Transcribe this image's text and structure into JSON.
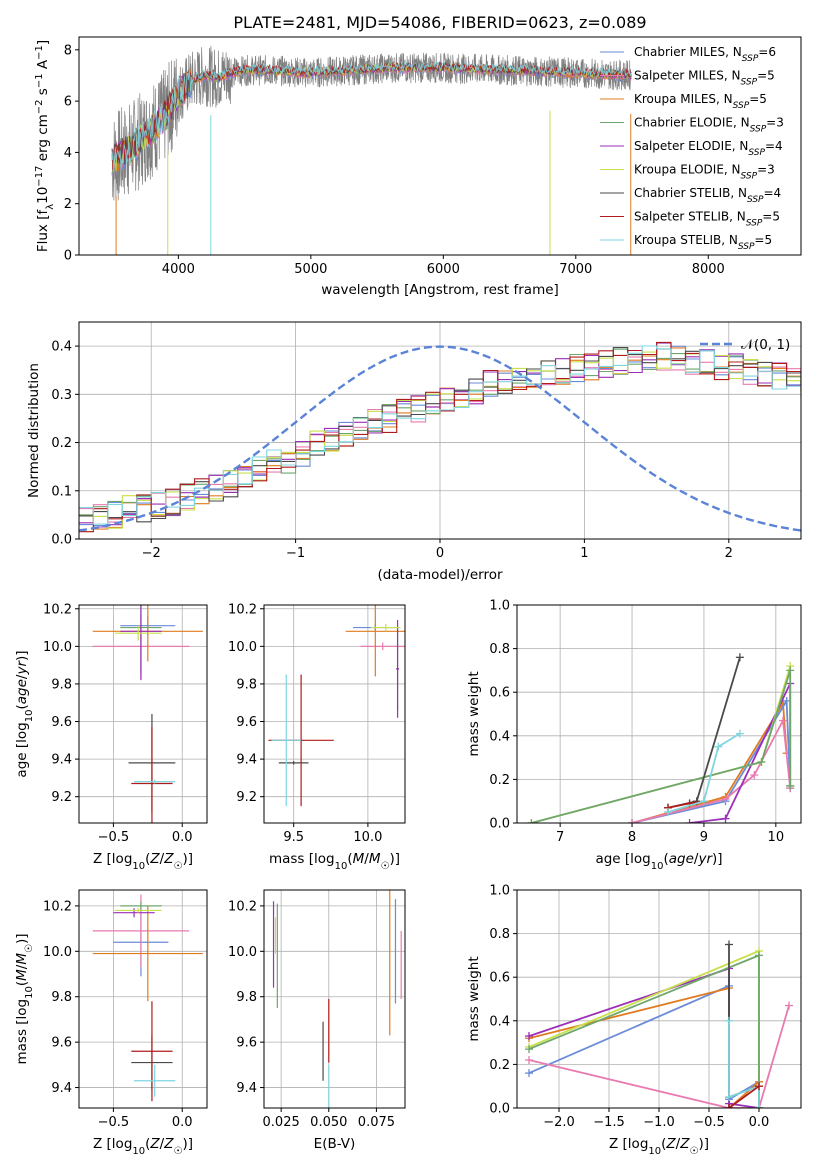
{
  "colors": {
    "chabrier_miles": "#6a8bd8",
    "salpeter_miles": "#e97ab0",
    "kroupa_miles": "#e07b20",
    "chabrier_elodie": "#6ea66e",
    "salpeter_elodie": "#9b2fb8",
    "kroupa_elodie": "#c8e04b",
    "chabrier_stelib": "#4a4a4a",
    "salpeter_stelib": "#b01c1c",
    "kroupa_stelib": "#7dd6e0",
    "grid": "#b0b0b0"
  },
  "chart_data": [
    {
      "id": "spectrum",
      "type": "line",
      "title": "PLATE=2481, MJD=54086, FIBERID=0623, z=0.089",
      "xlabel": "wavelength [Angstrom, rest frame]",
      "ylabel": "Flux [f_λ10^-17 erg cm^-2 s^-1 A^-1]",
      "ylabel_parts": {
        "pre": "Flux [f",
        "sub1": "λ",
        "mid1": "10",
        "sup1": "−17",
        "mid2": " erg cm",
        "sup2": "−2",
        "mid3": " s",
        "sup3": "−1",
        "mid4": " A",
        "sup4": "−1",
        "end": "]"
      },
      "xlim": [
        3250,
        8700
      ],
      "ylim": [
        0,
        8.5
      ],
      "xticks": [
        4000,
        5000,
        6000,
        7000,
        8000
      ],
      "yticks": [
        0,
        2,
        4,
        6,
        8
      ],
      "data_range": [
        3500,
        7420
      ],
      "continuum": {
        "wavelength": [
          3500,
          3600,
          3700,
          3800,
          3900,
          4000,
          4100,
          4200,
          4300,
          4400,
          4500,
          4700,
          5000,
          5300,
          5600,
          6000,
          6500,
          7000,
          7420
        ],
        "flux": [
          3.7,
          4.0,
          4.4,
          4.9,
          5.4,
          6.3,
          6.8,
          7.0,
          6.9,
          7.1,
          7.2,
          7.2,
          7.1,
          7.2,
          7.3,
          7.3,
          7.2,
          7.1,
          7.0
        ]
      },
      "legend_position": "right",
      "legend": [
        {
          "label": "Chabrier MILES, N",
          "sub": "SSP",
          "tail": "=6",
          "color": "#6a8bd8"
        },
        {
          "label": "Salpeter MILES, N",
          "sub": "SSP",
          "tail": "=5",
          "color": "#e97ab0"
        },
        {
          "label": "Kroupa MILES, N",
          "sub": "SSP",
          "tail": "=5",
          "color": "#e07b20"
        },
        {
          "label": "Chabrier ELODIE, N",
          "sub": "SSP",
          "tail": "=3",
          "color": "#6ea66e"
        },
        {
          "label": "Salpeter ELODIE, N",
          "sub": "SSP",
          "tail": "=4",
          "color": "#9b2fb8"
        },
        {
          "label": "Kroupa ELODIE, N",
          "sub": "SSP",
          "tail": "=3",
          "color": "#c8e04b"
        },
        {
          "label": "Chabrier STELIB, N",
          "sub": "SSP",
          "tail": "=4",
          "color": "#4a4a4a"
        },
        {
          "label": "Salpeter STELIB, N",
          "sub": "SSP",
          "tail": "=5",
          "color": "#b01c1c"
        },
        {
          "label": "Kroupa STELIB, N",
          "sub": "SSP",
          "tail": "=5",
          "color": "#7dd6e0"
        }
      ]
    },
    {
      "id": "residuals",
      "type": "step",
      "xlabel": "(data-model)/error",
      "ylabel": "Normed distribution",
      "xlim": [
        -2.5,
        2.5
      ],
      "ylim": [
        0,
        0.45
      ],
      "xticks": [
        -2,
        -1,
        0,
        1,
        2
      ],
      "xticklabels": [
        "−2",
        "−1",
        "0",
        "1",
        "2"
      ],
      "yticks": [
        0.0,
        0.1,
        0.2,
        0.3,
        0.4
      ],
      "yticklabels": [
        "0.0",
        "0.1",
        "0.2",
        "0.3",
        "0.4"
      ],
      "bin_width": 0.1,
      "bin_start": -2.5,
      "base_hist": [
        0.04,
        0.045,
        0.05,
        0.06,
        0.065,
        0.07,
        0.075,
        0.085,
        0.1,
        0.105,
        0.115,
        0.13,
        0.14,
        0.155,
        0.165,
        0.18,
        0.2,
        0.21,
        0.22,
        0.23,
        0.24,
        0.25,
        0.26,
        0.27,
        0.28,
        0.29,
        0.3,
        0.31,
        0.32,
        0.33,
        0.335,
        0.34,
        0.345,
        0.35,
        0.355,
        0.36,
        0.365,
        0.37,
        0.37,
        0.375,
        0.38,
        0.375,
        0.37,
        0.365,
        0.36,
        0.355,
        0.35,
        0.345,
        0.34,
        0.33,
        0.32,
        0.31,
        0.3,
        0.29,
        0.28,
        0.27,
        0.26,
        0.25,
        0.24,
        0.23,
        0.22,
        0.21,
        0.2,
        0.185,
        0.17,
        0.155,
        0.14,
        0.125,
        0.115,
        0.105,
        0.095,
        0.085,
        0.08,
        0.075,
        0.07,
        0.065,
        0.06,
        0.055,
        0.05,
        0.048,
        0.045,
        0.043,
        0.04,
        0.04,
        0.038,
        0.036,
        0.035,
        0.035,
        0.034,
        0.033,
        0.032,
        0.031,
        0.03,
        0.03,
        0.03,
        0.03,
        0.03,
        0.03,
        0.03,
        0.03
      ],
      "gaussian_label": "𝒩(0, 1)",
      "gaussian_color": "#5b84d6",
      "legend_position": "top-right"
    },
    {
      "id": "age_vs_Z",
      "type": "errorbar",
      "xlabel": "Z [log10(Z/Z☉)]",
      "ylabel": "age  [log10(age/yr)]",
      "xlim": [
        -0.75,
        0.18
      ],
      "ylim": [
        9.06,
        10.22
      ],
      "xticks": [
        -0.5,
        0.0
      ],
      "xticklabels": [
        "−0.5",
        "0.0"
      ],
      "yticks": [
        9.2,
        9.4,
        9.6,
        9.8,
        10.0,
        10.2
      ],
      "yticklabels": [
        "9.2",
        "9.4",
        "9.6",
        "9.8",
        "10.0",
        "10.2"
      ],
      "points": [
        {
          "key": "chabrier_miles",
          "x": -0.25,
          "xerr": 0.2,
          "y": 10.11,
          "yerr": 0.05
        },
        {
          "key": "salpeter_miles",
          "x": -0.3,
          "xerr": 0.35,
          "y": 10.0,
          "yerr": 0.17
        },
        {
          "key": "kroupa_miles",
          "x": -0.25,
          "xerr": 0.4,
          "y": 10.08,
          "yerr": 0.16
        },
        {
          "key": "chabrier_elodie",
          "x": -0.3,
          "xerr": 0.15,
          "y": 10.1,
          "yerr": 0.24
        },
        {
          "key": "salpeter_elodie",
          "x": -0.3,
          "xerr": 0.15,
          "y": 10.08,
          "yerr": 0.26
        },
        {
          "key": "kroupa_elodie",
          "x": -0.32,
          "xerr": 0.17,
          "y": 10.07,
          "yerr": 0.04
        },
        {
          "key": "chabrier_stelib",
          "x": -0.22,
          "xerr": 0.17,
          "y": 9.38,
          "yerr": 0.26
        },
        {
          "key": "salpeter_stelib",
          "x": -0.22,
          "xerr": 0.15,
          "y": 9.27,
          "yerr": 0.3
        },
        {
          "key": "kroupa_stelib",
          "x": -0.2,
          "xerr": 0.15,
          "y": 9.28,
          "yerr": 0.01
        }
      ]
    },
    {
      "id": "age_vs_mass",
      "type": "errorbar",
      "xlabel": "mass [log10(M/M☉)]",
      "ylabel": "",
      "xlim": [
        9.3,
        10.25
      ],
      "ylim": [
        9.06,
        10.22
      ],
      "xticks": [
        9.5,
        10.0
      ],
      "xticklabels": [
        "9.5",
        "10.0"
      ],
      "yticks": [
        9.2,
        9.4,
        9.6,
        9.8,
        10.0,
        10.2
      ],
      "yticklabels": [
        "9.2",
        "9.4",
        "9.6",
        "9.8",
        "10.0",
        "10.2"
      ],
      "points": [
        {
          "key": "chabrier_miles",
          "x": 10.05,
          "xerr": 0.15,
          "y": 10.1,
          "yerr": 0.02
        },
        {
          "key": "salpeter_miles",
          "x": 10.1,
          "xerr": 0.15,
          "y": 10.0,
          "yerr": 0.02
        },
        {
          "key": "kroupa_miles",
          "x": 10.05,
          "xerr": 0.2,
          "y": 10.08,
          "yerr": 0.24
        },
        {
          "key": "chabrier_elodie",
          "x": 10.2,
          "xerr": 0.01,
          "y": 9.88,
          "yerr": 0.22
        },
        {
          "key": "salpeter_elodie",
          "x": 10.2,
          "xerr": 0.01,
          "y": 9.88,
          "yerr": 0.26
        },
        {
          "key": "kroupa_elodie",
          "x": 10.12,
          "xerr": 0.1,
          "y": 10.1,
          "yerr": 0.02
        },
        {
          "key": "chabrier_stelib",
          "x": 9.5,
          "xerr": 0.1,
          "y": 9.38,
          "yerr": 0.01
        },
        {
          "key": "salpeter_stelib",
          "x": 9.55,
          "xerr": 0.22,
          "y": 9.5,
          "yerr": 0.35
        },
        {
          "key": "kroupa_stelib",
          "x": 9.45,
          "xerr": 0.1,
          "y": 9.5,
          "yerr": 0.35
        }
      ]
    },
    {
      "id": "weight_vs_age",
      "type": "line",
      "xlabel": "age  [log10(age/yr)]",
      "ylabel": "mass weight",
      "xlim": [
        6.4,
        10.35
      ],
      "ylim": [
        0,
        1
      ],
      "xticks": [
        7,
        8,
        9,
        10
      ],
      "xticklabels": [
        "7",
        "8",
        "9",
        "10"
      ],
      "yticks": [
        0.0,
        0.2,
        0.4,
        0.6,
        0.8,
        1.0
      ],
      "yticklabels": [
        "0.0",
        "0.2",
        "0.4",
        "0.6",
        "0.8",
        "1.0"
      ],
      "series": [
        {
          "key": "kroupa_miles",
          "x": [
            8.0,
            9.3,
            10.1,
            10.15
          ],
          "y": [
            0.0,
            0.12,
            0.55,
            0.32
          ]
        },
        {
          "key": "chabrier_miles",
          "x": [
            8.0,
            9.3,
            10.15,
            10.2
          ],
          "y": [
            0.0,
            0.1,
            0.56,
            0.16
          ]
        },
        {
          "key": "salpeter_miles",
          "x": [
            8.0,
            9.3,
            9.7,
            10.1,
            10.2
          ],
          "y": [
            0.0,
            0.11,
            0.22,
            0.47,
            0.16
          ]
        },
        {
          "key": "salpeter_elodie",
          "x": [
            8.8,
            9.3,
            10.2,
            10.2
          ],
          "y": [
            0.0,
            0.02,
            0.64,
            0.17
          ]
        },
        {
          "key": "kroupa_elodie",
          "x": [
            6.6,
            9.8,
            10.2,
            10.2
          ],
          "y": [
            0.0,
            0.28,
            0.72,
            0.17
          ]
        },
        {
          "key": "chabrier_elodie",
          "x": [
            6.6,
            9.8,
            10.2,
            10.2
          ],
          "y": [
            0.0,
            0.28,
            0.7,
            0.17
          ]
        },
        {
          "key": "chabrier_stelib",
          "x": [
            8.5,
            8.9,
            9.5
          ],
          "y": [
            0.07,
            0.1,
            0.76
          ]
        },
        {
          "key": "salpeter_stelib",
          "x": [
            8.5,
            8.8,
            9.0
          ],
          "y": [
            0.07,
            0.09,
            0.1
          ]
        },
        {
          "key": "kroupa_stelib",
          "x": [
            8.5,
            9.0,
            9.2,
            9.5
          ],
          "y": [
            0.05,
            0.1,
            0.35,
            0.41
          ]
        }
      ]
    },
    {
      "id": "mass_vs_Z",
      "type": "errorbar",
      "xlabel": "Z [log10(Z/Z☉)]",
      "ylabel": "mass [log10(M/M☉)]",
      "xlim": [
        -0.75,
        0.18
      ],
      "ylim": [
        9.31,
        10.27
      ],
      "xticks": [
        -0.5,
        0.0
      ],
      "xticklabels": [
        "−0.5",
        "0.0"
      ],
      "yticks": [
        9.4,
        9.6,
        9.8,
        10.0,
        10.2
      ],
      "yticklabels": [
        "9.4",
        "9.6",
        "9.8",
        "10.0",
        "10.2"
      ],
      "points": [
        {
          "key": "chabrier_miles",
          "x": -0.3,
          "xerr": 0.2,
          "y": 10.04,
          "yerr": 0.15
        },
        {
          "key": "salpeter_miles",
          "x": -0.3,
          "xerr": 0.35,
          "y": 10.09,
          "yerr": 0.16
        },
        {
          "key": "kroupa_miles",
          "x": -0.25,
          "xerr": 0.4,
          "y": 9.99,
          "yerr": 0.21
        },
        {
          "key": "chabrier_elodie",
          "x": -0.3,
          "xerr": 0.15,
          "y": 10.2,
          "yerr": 0.02
        },
        {
          "key": "salpeter_elodie",
          "x": -0.35,
          "xerr": 0.15,
          "y": 10.17,
          "yerr": 0.02
        },
        {
          "key": "kroupa_elodie",
          "x": -0.32,
          "xerr": 0.17,
          "y": 10.18,
          "yerr": 0.01
        },
        {
          "key": "chabrier_stelib",
          "x": -0.22,
          "xerr": 0.15,
          "y": 9.51,
          "yerr": 0.12
        },
        {
          "key": "salpeter_stelib",
          "x": -0.22,
          "xerr": 0.15,
          "y": 9.56,
          "yerr": 0.22
        },
        {
          "key": "kroupa_stelib",
          "x": -0.2,
          "xerr": 0.15,
          "y": 9.43,
          "yerr": 0.07
        }
      ]
    },
    {
      "id": "mass_vs_ebv",
      "type": "errorbar",
      "xlabel": "E(B-V)",
      "ylabel": "",
      "xlim": [
        0.016,
        0.09
      ],
      "ylim": [
        9.31,
        10.27
      ],
      "xticks": [
        0.025,
        0.05,
        0.075
      ],
      "xticklabels": [
        "0.025",
        "0.050",
        "0.075"
      ],
      "yticks": [
        9.4,
        9.6,
        9.8,
        10.0,
        10.2
      ],
      "yticklabels": [
        "9.4",
        "9.6",
        "9.8",
        "10.0",
        "10.2"
      ],
      "points": [
        {
          "key": "chabrier_miles",
          "x": 0.085,
          "xerr": 0.0,
          "y": 10.0,
          "yerr": 0.23
        },
        {
          "key": "salpeter_miles",
          "x": 0.088,
          "xerr": 0.0,
          "y": 9.94,
          "yerr": 0.15
        },
        {
          "key": "kroupa_miles",
          "x": 0.082,
          "xerr": 0.0,
          "y": 9.96,
          "yerr": 0.33
        },
        {
          "key": "chabrier_elodie",
          "x": 0.023,
          "xerr": 0.0,
          "y": 9.98,
          "yerr": 0.23
        },
        {
          "key": "salpeter_elodie",
          "x": 0.021,
          "xerr": 0.0,
          "y": 10.03,
          "yerr": 0.19
        },
        {
          "key": "kroupa_elodie",
          "x": 0.022,
          "xerr": 0.0,
          "y": 10.07,
          "yerr": 0.08
        },
        {
          "key": "chabrier_stelib",
          "x": 0.047,
          "xerr": 0.0,
          "y": 9.56,
          "yerr": 0.13
        },
        {
          "key": "salpeter_stelib",
          "x": 0.05,
          "xerr": 0.0,
          "y": 9.65,
          "yerr": 0.14
        },
        {
          "key": "kroupa_stelib",
          "x": 0.05,
          "xerr": 0.0,
          "y": 9.4,
          "yerr": 0.1
        }
      ]
    },
    {
      "id": "weight_vs_Z",
      "type": "line",
      "xlabel": "Z [log10(Z/Z☉)]",
      "ylabel": "mass weight",
      "xlim": [
        -2.42,
        0.42
      ],
      "ylim": [
        0,
        1
      ],
      "xticks": [
        -2.0,
        -1.5,
        -1.0,
        -0.5,
        0.0
      ],
      "xticklabels": [
        "−2.0",
        "−1.5",
        "−1.0",
        "−0.5",
        "0.0"
      ],
      "yticks": [
        0.0,
        0.2,
        0.4,
        0.6,
        0.8,
        1.0
      ],
      "yticklabels": [
        "0.0",
        "0.2",
        "0.4",
        "0.6",
        "0.8",
        "1.0"
      ],
      "series": [
        {
          "key": "chabrier_miles",
          "x": [
            -2.3,
            -0.3,
            -0.3,
            0.0,
            0.0
          ],
          "y": [
            0.16,
            0.56,
            0.04,
            0.12,
            0.0
          ]
        },
        {
          "key": "kroupa_miles",
          "x": [
            -2.3,
            -0.3,
            -0.3,
            0.0,
            0.0
          ],
          "y": [
            0.32,
            0.55,
            0.0,
            0.12,
            0.0
          ]
        },
        {
          "key": "salpeter_miles",
          "x": [
            -2.3,
            -0.3,
            0.0,
            0.3
          ],
          "y": [
            0.22,
            0.0,
            0.0,
            0.47
          ]
        },
        {
          "key": "salpeter_elodie",
          "x": [
            -2.3,
            -0.3,
            -0.3,
            0.0
          ],
          "y": [
            0.33,
            0.64,
            0.02,
            0.0
          ]
        },
        {
          "key": "kroupa_elodie",
          "x": [
            -2.3,
            0.0,
            0.0
          ],
          "y": [
            0.28,
            0.72,
            0.0
          ]
        },
        {
          "key": "chabrier_elodie",
          "x": [
            -2.3,
            0.0,
            0.0
          ],
          "y": [
            0.27,
            0.7,
            0.0
          ]
        },
        {
          "key": "chabrier_stelib",
          "x": [
            -0.3,
            -0.3,
            0.0,
            0.0
          ],
          "y": [
            0.75,
            0.05,
            0.1,
            0.0
          ]
        },
        {
          "key": "kroupa_stelib",
          "x": [
            -0.3,
            -0.3,
            0.0,
            0.0
          ],
          "y": [
            0.4,
            0.05,
            0.1,
            0.0
          ]
        },
        {
          "key": "salpeter_stelib",
          "x": [
            -0.3,
            -0.3,
            0.0
          ],
          "y": [
            0.0,
            0.0,
            0.1
          ]
        }
      ]
    }
  ]
}
